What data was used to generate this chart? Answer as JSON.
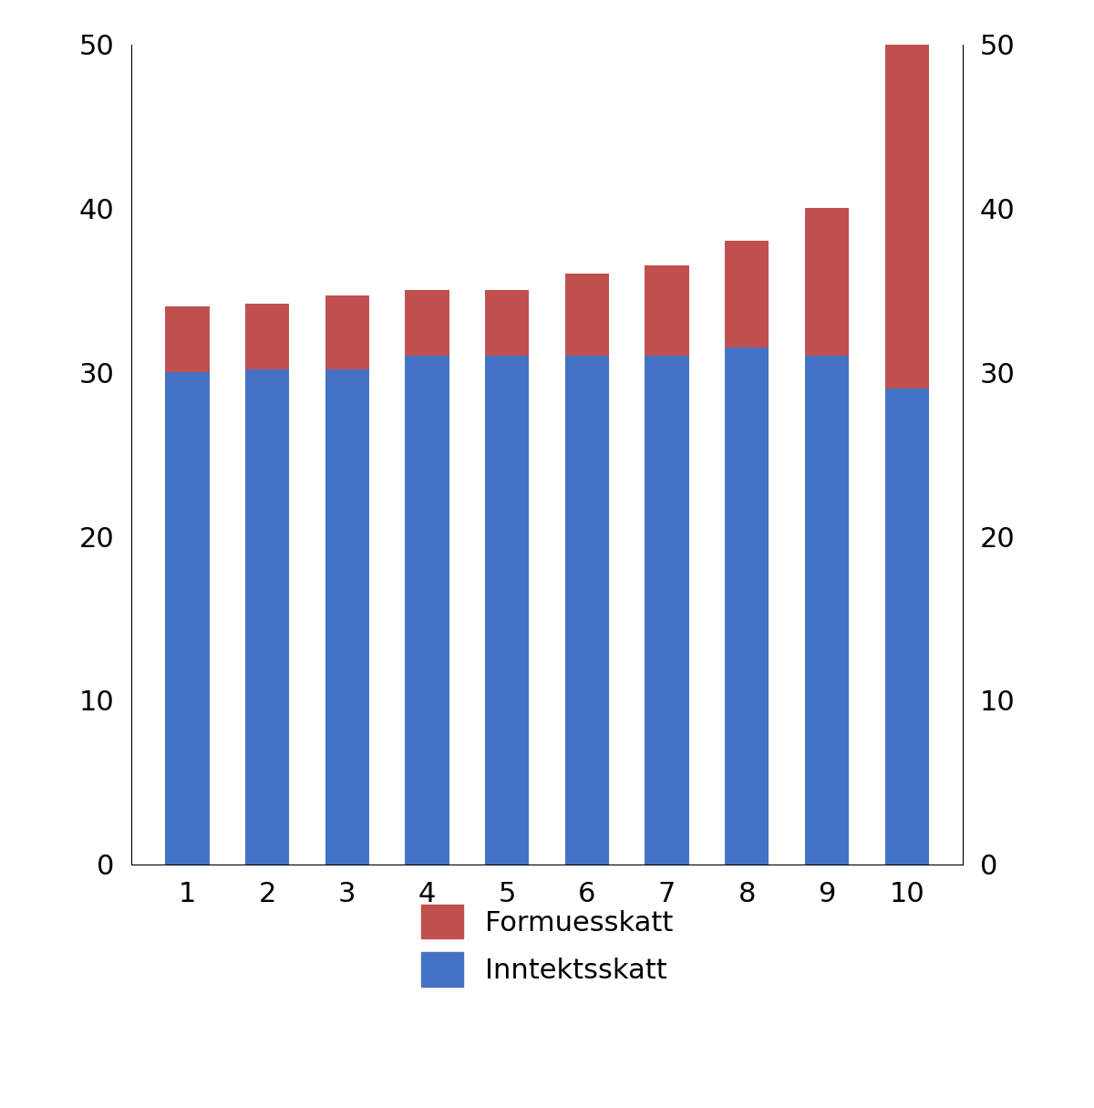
{
  "categories": [
    1,
    2,
    3,
    4,
    5,
    6,
    7,
    8,
    9,
    10
  ],
  "inntektsskatt": [
    30.0,
    30.2,
    30.2,
    31.0,
    31.0,
    31.0,
    31.0,
    31.5,
    31.0,
    29.0
  ],
  "formuesskatt": [
    4.0,
    4.0,
    4.5,
    4.0,
    4.0,
    5.0,
    5.5,
    6.5,
    9.0,
    21.0
  ],
  "inntektsskatt_color": "#4472C4",
  "formuesskatt_color": "#C0504D",
  "background_color": "#FFFFFF",
  "ylim": [
    0,
    50
  ],
  "yticks": [
    0,
    10,
    20,
    30,
    40,
    50
  ],
  "legend_labels": [
    "Formuesskatt",
    "Inntektsskatt"
  ],
  "bar_width": 0.55,
  "tick_fontsize": 22,
  "legend_fontsize": 22
}
